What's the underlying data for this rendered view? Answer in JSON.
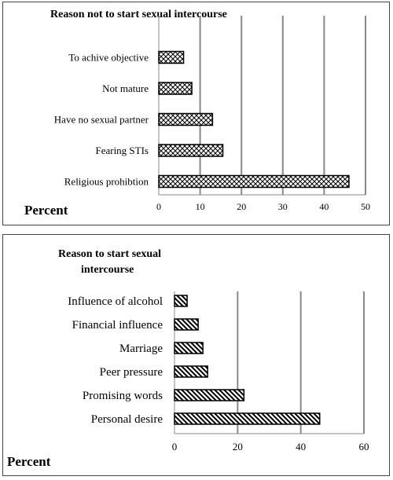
{
  "chart_data": [
    {
      "type": "bar",
      "orientation": "horizontal",
      "title": "Reason not to start sexual intercourse",
      "xlabel": "Percent",
      "ylabel": "",
      "categories": [
        "To achive objective",
        "Not mature",
        "Have no sexual partner",
        "Fearing STIs",
        "Religious prohibtion"
      ],
      "values": [
        6,
        8,
        13,
        15.5,
        46
      ],
      "xlim": [
        0,
        50
      ],
      "xticks": [
        0,
        10,
        20,
        30,
        40,
        50
      ],
      "grid": "vertical",
      "legend": "none",
      "fill_pattern": "crosshatch"
    },
    {
      "type": "bar",
      "orientation": "horizontal",
      "title": "Reason to start sexual intercourse",
      "xlabel": "Percent",
      "ylabel": "",
      "categories": [
        "Influence of alcohol",
        "Financial influence",
        "Marriage",
        "Peer pressure",
        "Promising words",
        "Personal desire"
      ],
      "values": [
        4,
        7.5,
        9,
        10.5,
        22,
        46
      ],
      "xlim": [
        0,
        60
      ],
      "xticks": [
        0,
        20,
        40,
        60
      ],
      "grid": "vertical",
      "legend": "none",
      "fill_pattern": "diagonal"
    }
  ]
}
